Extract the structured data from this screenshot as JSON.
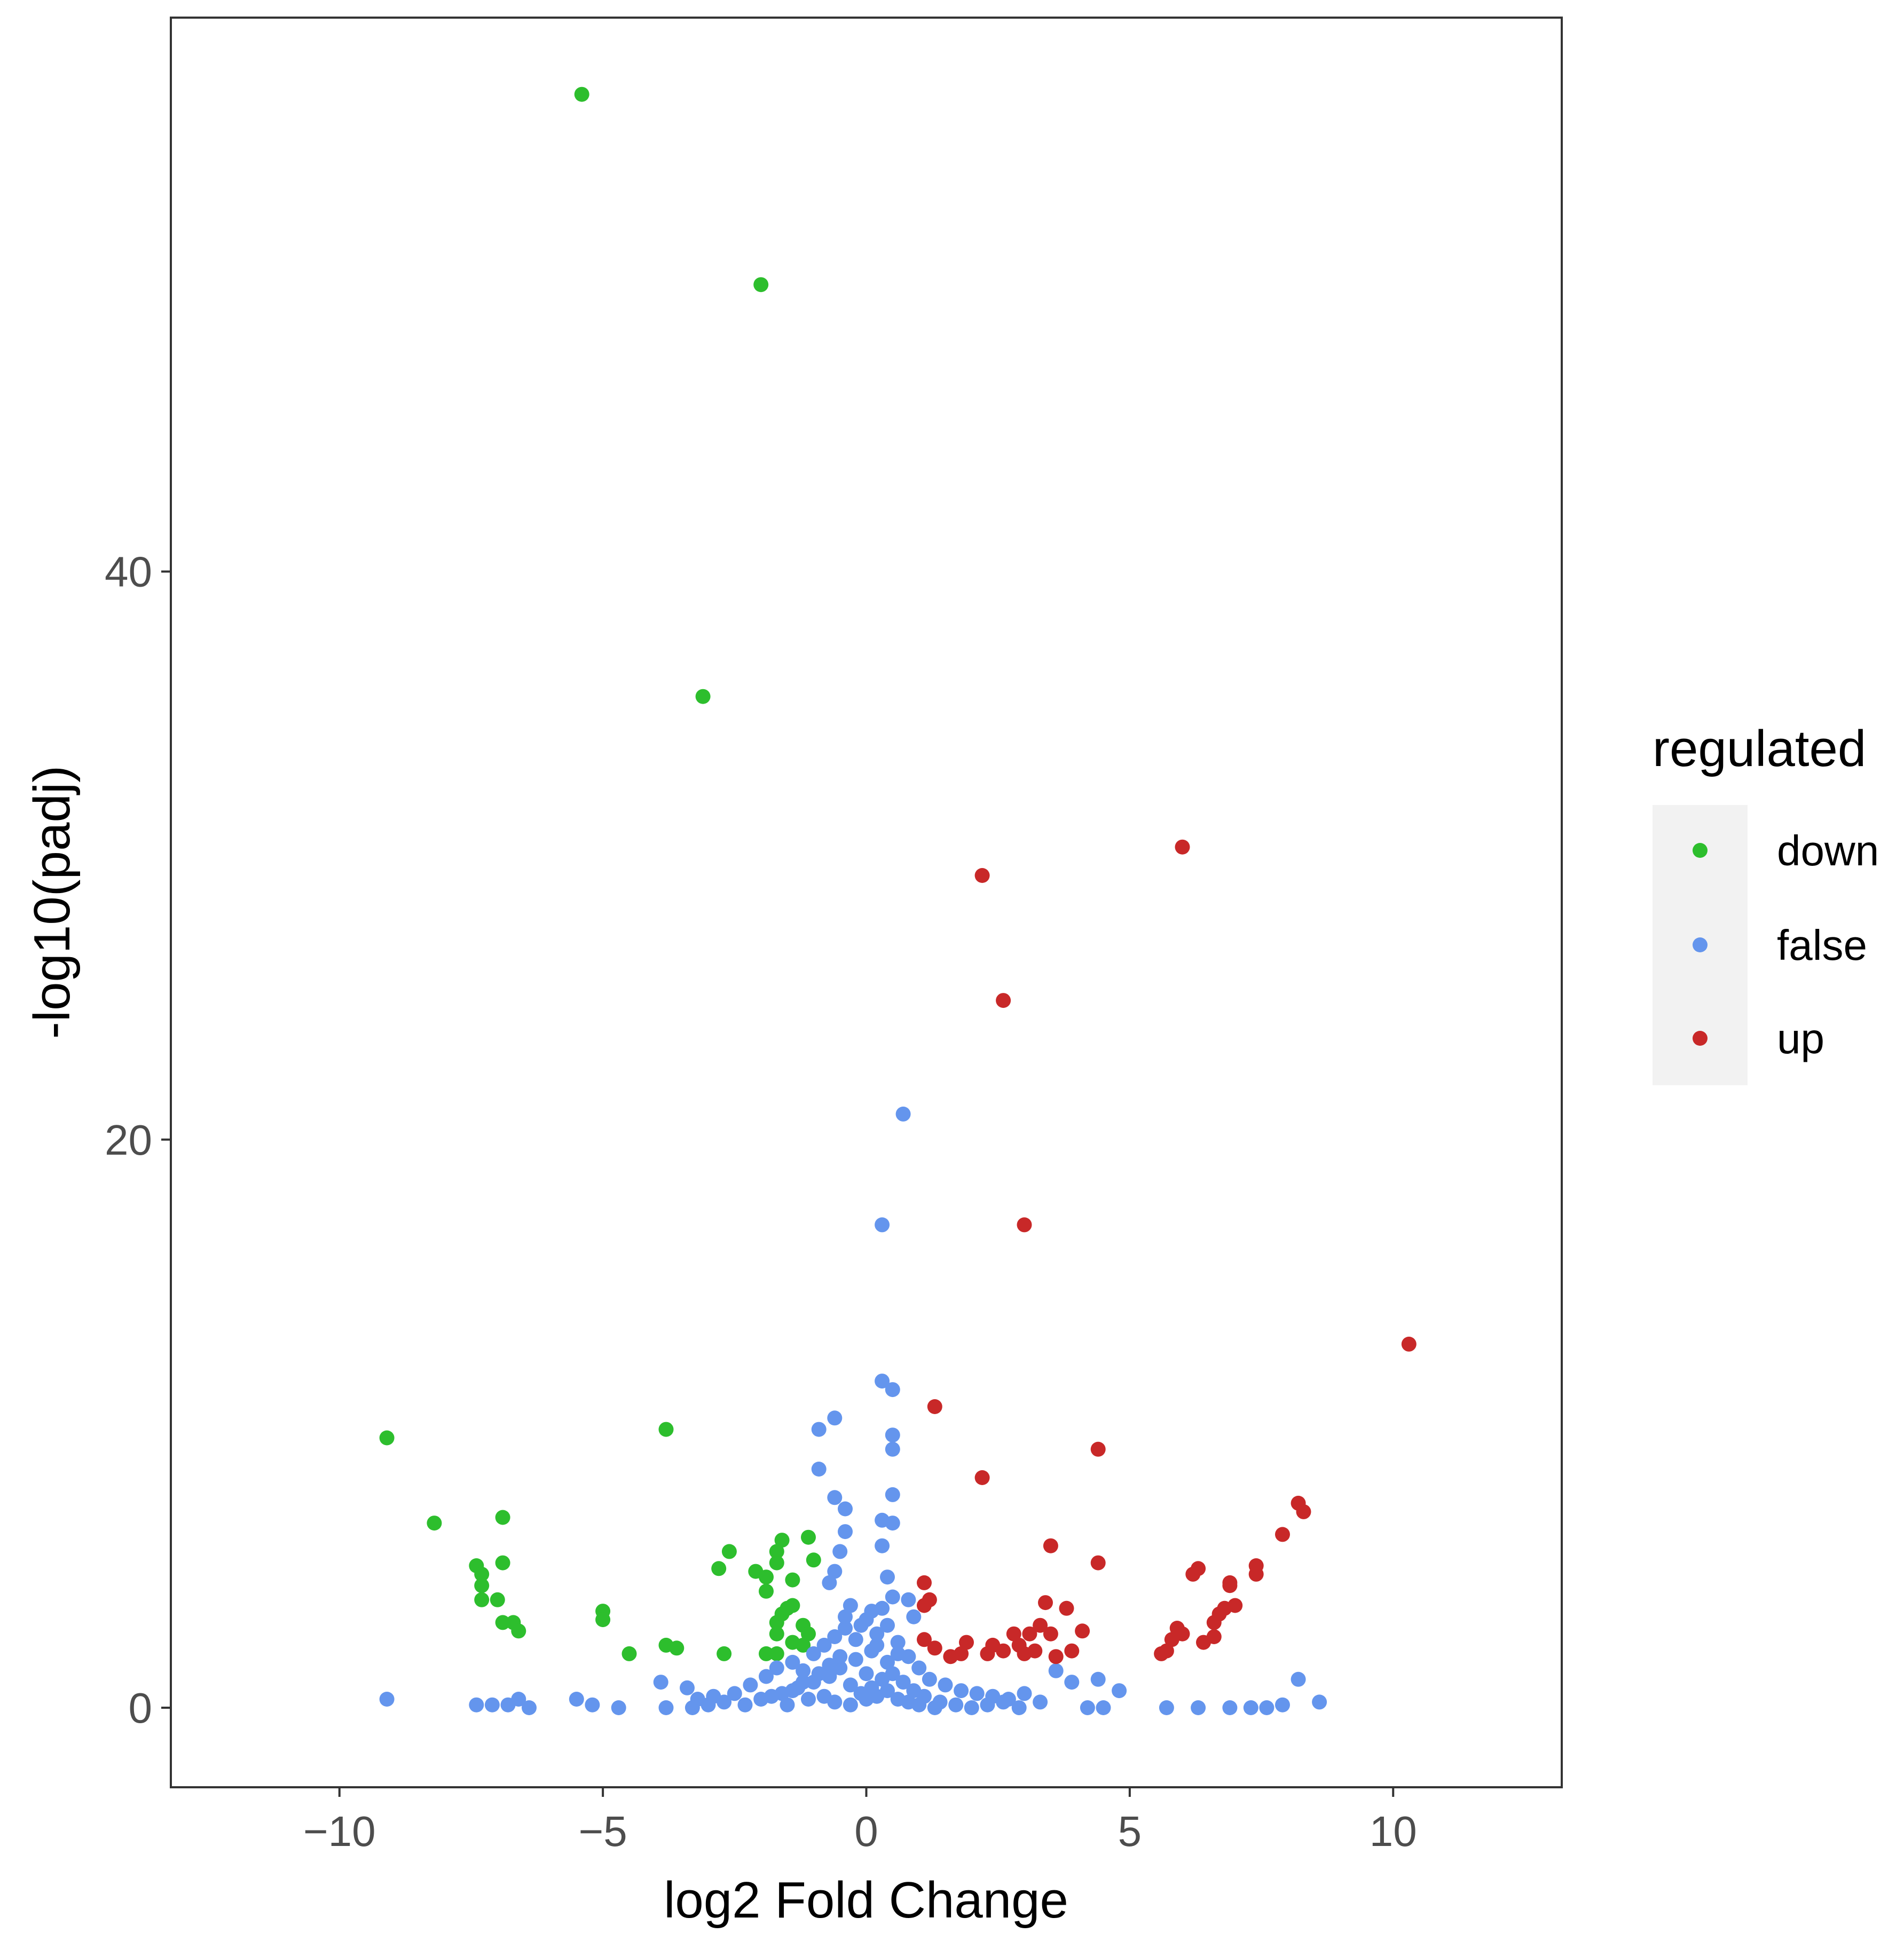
{
  "chart_data": {
    "type": "scatter",
    "title": "",
    "xlabel": "log2 Fold Change",
    "ylabel": "-log10(padj)",
    "xlim": [
      -13.2,
      13.2
    ],
    "ylim": [
      -2.8,
      59.5
    ],
    "xticks": [
      {
        "value": -10,
        "label": "−10"
      },
      {
        "value": -5,
        "label": "−5"
      },
      {
        "value": 0,
        "label": "0"
      },
      {
        "value": 5,
        "label": "5"
      },
      {
        "value": 10,
        "label": "10"
      }
    ],
    "yticks": [
      {
        "value": 0,
        "label": "0"
      },
      {
        "value": 20,
        "label": "20"
      },
      {
        "value": 40,
        "label": "40"
      }
    ],
    "grid": false,
    "legend": {
      "title": "regulated",
      "position": "right",
      "entries": [
        {
          "name": "down",
          "color": "#2dbe2d"
        },
        {
          "name": "false",
          "color": "#6495ed"
        },
        {
          "name": "up",
          "color": "#c82828"
        }
      ]
    },
    "series": [
      {
        "name": "down",
        "color": "#2dbe2d",
        "points": [
          [
            -5.4,
            56.8
          ],
          [
            -2.0,
            50.1
          ],
          [
            -3.1,
            35.6
          ],
          [
            -9.1,
            9.5
          ],
          [
            -3.8,
            9.8
          ],
          [
            -8.2,
            6.5
          ],
          [
            -6.9,
            6.7
          ],
          [
            -7.4,
            5.0
          ],
          [
            -7.3,
            4.7
          ],
          [
            -7.3,
            4.3
          ],
          [
            -7.3,
            3.8
          ],
          [
            -6.9,
            5.1
          ],
          [
            -7.0,
            3.8
          ],
          [
            -6.9,
            3.0
          ],
          [
            -6.7,
            3.0
          ],
          [
            -6.6,
            2.7
          ],
          [
            -5.0,
            3.4
          ],
          [
            -5.0,
            3.1
          ],
          [
            -4.5,
            1.9
          ],
          [
            -3.8,
            2.2
          ],
          [
            -3.6,
            2.1
          ],
          [
            -2.6,
            5.5
          ],
          [
            -2.8,
            4.9
          ],
          [
            -2.7,
            1.9
          ],
          [
            -2.1,
            4.8
          ],
          [
            -1.9,
            4.6
          ],
          [
            -1.9,
            4.1
          ],
          [
            -1.7,
            5.5
          ],
          [
            -1.7,
            5.1
          ],
          [
            -1.6,
            5.9
          ],
          [
            -1.4,
            4.5
          ],
          [
            -1.1,
            6.0
          ],
          [
            -1.0,
            5.2
          ],
          [
            -1.7,
            3.0
          ],
          [
            -1.7,
            2.6
          ],
          [
            -1.6,
            3.3
          ],
          [
            -1.5,
            3.5
          ],
          [
            -1.4,
            3.6
          ],
          [
            -1.2,
            2.9
          ],
          [
            -1.1,
            2.6
          ],
          [
            -1.9,
            1.9
          ],
          [
            -1.7,
            1.9
          ],
          [
            -1.4,
            2.3
          ],
          [
            -1.2,
            2.2
          ]
        ]
      },
      {
        "name": "false",
        "color": "#6495ed",
        "points": [
          [
            0.7,
            20.9
          ],
          [
            0.3,
            17.0
          ],
          [
            0.3,
            11.5
          ],
          [
            0.5,
            11.2
          ],
          [
            -0.6,
            10.2
          ],
          [
            -0.9,
            9.8
          ],
          [
            0.5,
            9.6
          ],
          [
            0.5,
            9.1
          ],
          [
            -0.9,
            8.4
          ],
          [
            -0.6,
            7.4
          ],
          [
            -0.4,
            7.0
          ],
          [
            0.5,
            7.5
          ],
          [
            0.3,
            6.6
          ],
          [
            0.5,
            6.5
          ],
          [
            -0.4,
            6.2
          ],
          [
            -0.5,
            5.5
          ],
          [
            -0.6,
            4.8
          ],
          [
            -0.7,
            4.4
          ],
          [
            0.3,
            5.7
          ],
          [
            0.4,
            4.6
          ],
          [
            0.5,
            3.9
          ],
          [
            -0.3,
            3.6
          ],
          [
            -0.4,
            3.2
          ],
          [
            0.1,
            3.4
          ],
          [
            0.3,
            3.5
          ],
          [
            0.8,
            3.8
          ],
          [
            0.9,
            3.2
          ],
          [
            -9.1,
            0.3
          ],
          [
            -7.4,
            0.1
          ],
          [
            -7.1,
            0.1
          ],
          [
            -6.8,
            0.1
          ],
          [
            -6.6,
            0.3
          ],
          [
            -6.4,
            0.0
          ],
          [
            -5.5,
            0.3
          ],
          [
            -5.2,
            0.1
          ],
          [
            -4.7,
            0.0
          ],
          [
            -3.9,
            0.9
          ],
          [
            -3.8,
            0.0
          ],
          [
            -3.4,
            0.7
          ],
          [
            -3.2,
            0.3
          ],
          [
            -2.9,
            0.4
          ],
          [
            -2.5,
            0.5
          ],
          [
            -2.2,
            0.8
          ],
          [
            -1.9,
            1.1
          ],
          [
            -1.7,
            1.4
          ],
          [
            -1.4,
            1.6
          ],
          [
            -1.2,
            1.3
          ],
          [
            -1.0,
            1.9
          ],
          [
            -0.8,
            2.2
          ],
          [
            -0.6,
            2.5
          ],
          [
            -0.4,
            2.8
          ],
          [
            -0.2,
            1.7
          ],
          [
            0.0,
            1.2
          ],
          [
            0.1,
            2.0
          ],
          [
            0.2,
            2.6
          ],
          [
            0.4,
            2.9
          ],
          [
            0.6,
            2.3
          ],
          [
            0.8,
            1.8
          ],
          [
            1.0,
            1.4
          ],
          [
            1.2,
            1.0
          ],
          [
            1.5,
            0.8
          ],
          [
            1.8,
            0.6
          ],
          [
            2.1,
            0.5
          ],
          [
            2.4,
            0.4
          ],
          [
            2.7,
            0.3
          ],
          [
            3.0,
            0.5
          ],
          [
            3.3,
            0.2
          ],
          [
            3.6,
            1.3
          ],
          [
            3.9,
            0.9
          ],
          [
            4.2,
            0.0
          ],
          [
            4.5,
            0.0
          ],
          [
            4.4,
            1.0
          ],
          [
            4.8,
            0.6
          ],
          [
            5.7,
            0.0
          ],
          [
            6.3,
            0.0
          ],
          [
            6.9,
            0.0
          ],
          [
            7.3,
            0.0
          ],
          [
            7.6,
            0.0
          ],
          [
            7.9,
            0.1
          ],
          [
            8.2,
            1.0
          ],
          [
            8.6,
            0.2
          ],
          [
            -3.3,
            0.0
          ],
          [
            -3.0,
            0.1
          ],
          [
            -2.7,
            0.2
          ],
          [
            -2.3,
            0.1
          ],
          [
            -2.0,
            0.3
          ],
          [
            -1.6,
            0.5
          ],
          [
            -1.3,
            0.7
          ],
          [
            -1.0,
            0.9
          ],
          [
            -0.7,
            1.1
          ],
          [
            -0.5,
            1.4
          ],
          [
            -0.3,
            0.8
          ],
          [
            -0.1,
            0.5
          ],
          [
            0.1,
            0.7
          ],
          [
            0.3,
            1.0
          ],
          [
            0.5,
            1.2
          ],
          [
            0.7,
            0.9
          ],
          [
            0.9,
            0.6
          ],
          [
            1.1,
            0.4
          ],
          [
            1.4,
            0.2
          ],
          [
            1.7,
            0.1
          ],
          [
            2.0,
            0.0
          ],
          [
            2.3,
            0.1
          ],
          [
            2.6,
            0.2
          ],
          [
            2.9,
            0.0
          ],
          [
            -1.5,
            0.1
          ],
          [
            -1.1,
            0.3
          ],
          [
            -0.8,
            0.4
          ],
          [
            -0.6,
            0.2
          ],
          [
            -0.3,
            0.1
          ],
          [
            0.0,
            0.3
          ],
          [
            0.2,
            0.4
          ],
          [
            0.4,
            0.6
          ],
          [
            0.6,
            0.3
          ],
          [
            0.8,
            0.2
          ],
          [
            1.0,
            0.1
          ],
          [
            1.3,
            0.0
          ],
          [
            -0.2,
            2.4
          ],
          [
            -0.1,
            2.9
          ],
          [
            0.0,
            3.1
          ],
          [
            0.2,
            2.2
          ],
          [
            0.4,
            1.6
          ],
          [
            0.6,
            1.9
          ],
          [
            -0.5,
            1.8
          ],
          [
            -0.7,
            1.5
          ],
          [
            -0.9,
            1.2
          ],
          [
            -1.2,
            0.9
          ],
          [
            -1.4,
            0.6
          ],
          [
            -1.8,
            0.4
          ]
        ]
      },
      {
        "name": "up",
        "color": "#c82828",
        "points": [
          [
            6.0,
            30.3
          ],
          [
            2.2,
            29.3
          ],
          [
            2.6,
            24.9
          ],
          [
            3.0,
            17.0
          ],
          [
            10.3,
            12.8
          ],
          [
            1.3,
            10.6
          ],
          [
            4.4,
            9.1
          ],
          [
            2.2,
            8.1
          ],
          [
            8.2,
            7.2
          ],
          [
            8.3,
            6.9
          ],
          [
            7.9,
            6.1
          ],
          [
            3.5,
            5.7
          ],
          [
            4.4,
            5.1
          ],
          [
            7.4,
            5.0
          ],
          [
            7.4,
            4.7
          ],
          [
            6.2,
            4.7
          ],
          [
            6.3,
            4.9
          ],
          [
            6.9,
            4.4
          ],
          [
            6.9,
            4.3
          ],
          [
            1.1,
            4.4
          ],
          [
            1.2,
            3.8
          ],
          [
            1.1,
            3.6
          ],
          [
            3.4,
            3.7
          ],
          [
            3.8,
            3.5
          ],
          [
            7.0,
            3.6
          ],
          [
            6.8,
            3.5
          ],
          [
            6.7,
            3.3
          ],
          [
            6.6,
            3.0
          ],
          [
            5.9,
            2.8
          ],
          [
            6.0,
            2.6
          ],
          [
            5.8,
            2.4
          ],
          [
            5.6,
            1.9
          ],
          [
            5.7,
            2.0
          ],
          [
            6.4,
            2.3
          ],
          [
            6.6,
            2.5
          ],
          [
            3.3,
            2.9
          ],
          [
            3.1,
            2.6
          ],
          [
            3.5,
            2.6
          ],
          [
            4.1,
            2.7
          ],
          [
            2.8,
            2.6
          ],
          [
            2.9,
            2.2
          ],
          [
            2.6,
            2.0
          ],
          [
            2.3,
            1.9
          ],
          [
            2.4,
            2.2
          ],
          [
            1.9,
            2.3
          ],
          [
            1.8,
            1.9
          ],
          [
            1.6,
            1.8
          ],
          [
            1.3,
            2.1
          ],
          [
            1.1,
            2.4
          ],
          [
            3.6,
            1.8
          ],
          [
            3.9,
            2.0
          ],
          [
            3.2,
            2.0
          ],
          [
            3.0,
            1.9
          ]
        ]
      }
    ]
  }
}
